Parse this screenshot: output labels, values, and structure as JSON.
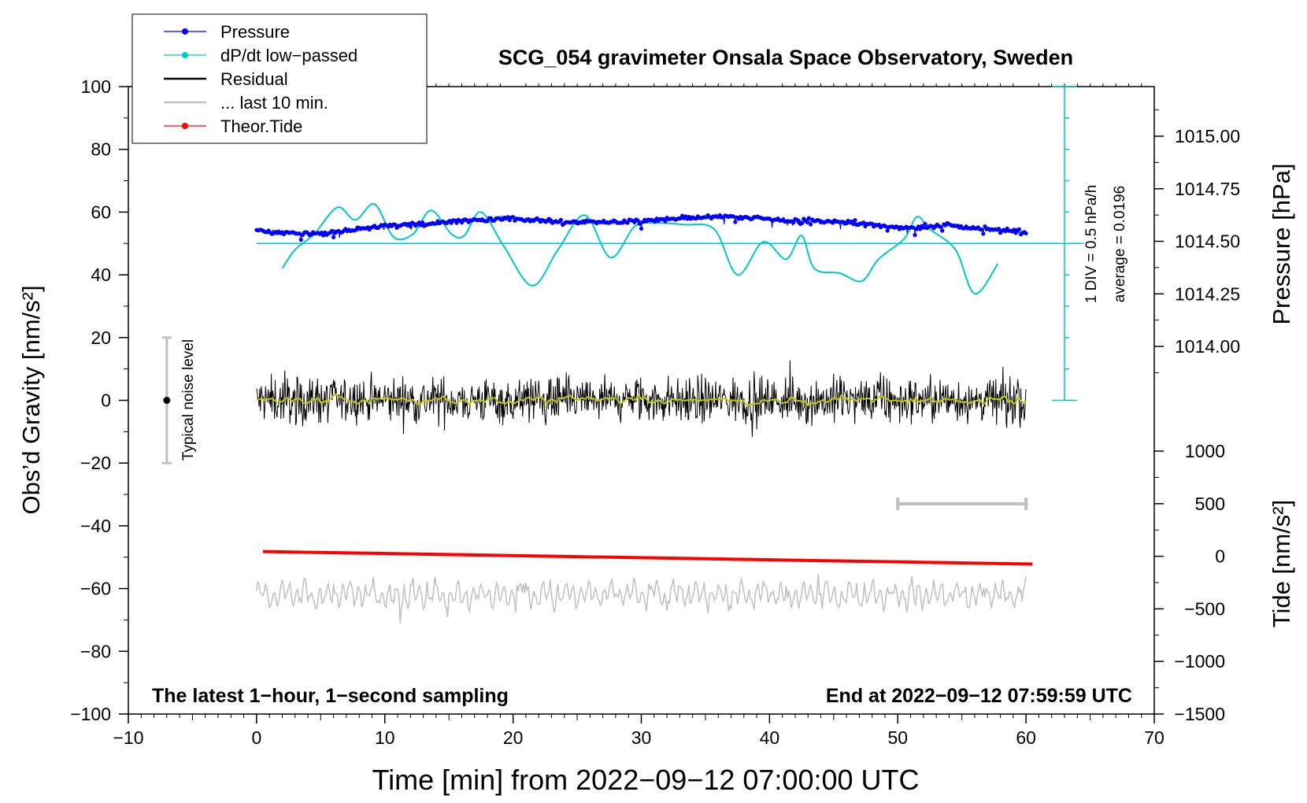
{
  "chart_data": {
    "type": "line",
    "title": "SCG_054 gravimeter Onsala Space Observatory, Sweden",
    "xlabel": "Time [min] from 2022−09−12 07:00:00 UTC",
    "ylabel_left": "Obs’d Gravity [nm/s²]",
    "ylabel_pressure": "Pressure [hPa]",
    "ylabel_tide": "Tide [nm/s²]",
    "xlim": [
      -10,
      70
    ],
    "ylim": [
      -100,
      100
    ],
    "x_ticks": [
      -10,
      0,
      10,
      20,
      30,
      40,
      50,
      60,
      70
    ],
    "x_tick_labels": [
      "−10",
      "0",
      "10",
      "20",
      "30",
      "40",
      "50",
      "60",
      "70"
    ],
    "y_ticks": [
      -100,
      -80,
      -60,
      -40,
      -20,
      0,
      20,
      40,
      60,
      80,
      100
    ],
    "y_tick_labels": [
      "−100",
      "−80",
      "−60",
      "−40",
      "−20",
      "0",
      "20",
      "40",
      "60",
      "80",
      "100"
    ],
    "pressure_axis": {
      "ticks": [
        1014.0,
        1014.25,
        1014.5,
        1014.75,
        1015.0
      ],
      "tick_labels": [
        "1014.00",
        "1014.25",
        "1014.50",
        "1014.75",
        "1015.00"
      ]
    },
    "tide_axis": {
      "ticks": [
        -1500,
        -1000,
        -500,
        0,
        500,
        1000
      ],
      "tick_labels": [
        "−1500",
        "−1000",
        "−500",
        "0",
        "500",
        "1000"
      ]
    },
    "legend": {
      "position": "top-left",
      "entries": [
        {
          "label": "Pressure",
          "color": "#0000ff",
          "marker": "dot"
        },
        {
          "label": "dP/dt low−passed",
          "color": "#00c8c8",
          "marker": "dot"
        },
        {
          "label": "Residual",
          "color": "#000000",
          "marker": "line"
        },
        {
          "label": "... last 10 min.",
          "color": "#c0c0c0",
          "marker": "line"
        },
        {
          "label": "Theor.Tide",
          "color": "#ff0000",
          "marker": "dot"
        }
      ]
    },
    "series": [
      {
        "name": "Pressure",
        "color": "#0000ff",
        "axis": "pressure",
        "x": [
          0,
          2,
          4,
          6,
          8,
          10,
          12,
          14,
          16,
          18,
          20,
          22,
          24,
          26,
          28,
          30,
          32,
          34,
          36,
          38,
          40,
          42,
          44,
          46,
          48,
          50,
          52,
          54,
          56,
          58,
          60
        ],
        "values": [
          54.2,
          53.4,
          53.0,
          53.6,
          54.6,
          55.6,
          56.0,
          56.5,
          57.2,
          57.6,
          58.0,
          57.4,
          56.6,
          57.0,
          56.8,
          57.2,
          57.8,
          58.2,
          58.6,
          58.4,
          57.8,
          57.0,
          57.2,
          56.8,
          56.0,
          55.0,
          55.2,
          55.8,
          55.0,
          54.2,
          53.4
        ]
      },
      {
        "name": "dP/dt low−passed",
        "color": "#00c8c8",
        "axis": "pressure",
        "x": [
          2,
          3,
          4.5,
          6.3,
          7.7,
          9.2,
          10.7,
          12.2,
          13.6,
          15.2,
          16.2,
          17.5,
          19.3,
          21.5,
          23.5,
          25.6,
          27.6,
          29.5,
          31.2,
          33.3,
          35.7,
          37.5,
          39.5,
          41.3,
          42.5,
          43.5,
          45.5,
          47.2,
          48.5,
          50.5,
          51.5,
          52.5,
          54.5,
          56,
          57.8
        ],
        "values": [
          42,
          48,
          53,
          61.5,
          57.5,
          62.5,
          52,
          53,
          60.5,
          53,
          52.5,
          60,
          49,
          36.5,
          48,
          59,
          45.5,
          55.5,
          56.5,
          56,
          54.5,
          40,
          50.5,
          45,
          52.5,
          42,
          40.5,
          38,
          45,
          51.5,
          58.5,
          54.5,
          48,
          34,
          43.5
        ]
      },
      {
        "name": "Residual",
        "color": "#000000",
        "axis": "gravity",
        "x_range": [
          0,
          60
        ],
        "center": 0,
        "amplitude": 5
      },
      {
        "name": "... last 10 min.",
        "color": "#c0c0c0",
        "axis": "gravity",
        "x_range": [
          0,
          60
        ],
        "center": -62,
        "amplitude": 5
      },
      {
        "name": "Theor.Tide",
        "color": "#ff0000",
        "axis": "gravity",
        "x": [
          0.5,
          60.5
        ],
        "values": [
          -48.2,
          -52.2
        ]
      }
    ],
    "dpdt_reference_line": 50,
    "noise_indicator": {
      "x": -7,
      "center": 0,
      "half_range": 20,
      "label": "Typical noise level"
    },
    "window_bracket": {
      "x_start": 50,
      "x_end": 60,
      "y": -33
    },
    "scale_bar": {
      "x": 63,
      "y_range": [
        0,
        100
      ],
      "label_1": "1 DIV = 0.5 hPa/h",
      "label_2": "average = 0.0196"
    },
    "annotations": {
      "bottom_left": "The latest 1−hour, 1−second sampling",
      "bottom_right": "End at 2022−09−12 07:59:59 UTC"
    }
  }
}
